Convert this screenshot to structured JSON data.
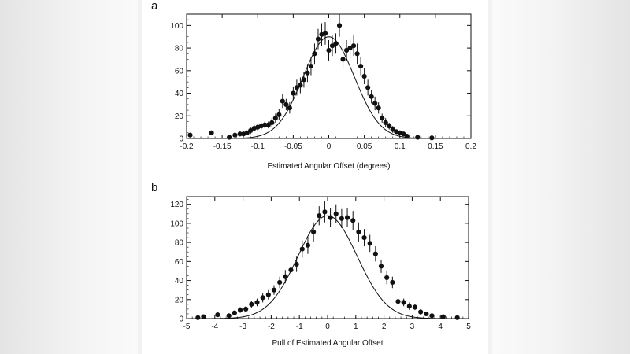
{
  "chart_data": [
    {
      "type": "scatter",
      "panel_label": "a",
      "xlabel": "Estimated Angular Offset (degrees)",
      "ylabel": "",
      "xlim": [
        -0.2,
        0.2
      ],
      "ylim": [
        0,
        110
      ],
      "x_ticks": [
        -0.2,
        -0.15,
        -0.1,
        -0.05,
        0,
        0.05,
        0.1,
        0.15,
        0.2
      ],
      "x_tick_labels": [
        "-0.2",
        "-0.15",
        "-0.1",
        "-0.05",
        "0",
        "0.05",
        "0.1",
        "0.15",
        "0.2"
      ],
      "y_ticks": [
        0,
        20,
        40,
        60,
        80,
        100
      ],
      "y_tick_labels": [
        "0",
        "20",
        "40",
        "60",
        "80",
        "100"
      ],
      "grid": false,
      "fit_curve": {
        "form": "gaussian",
        "amplitude": 90,
        "mean": 0,
        "sigma": 0.036
      },
      "series": [
        {
          "x": [
            -0.195,
            -0.165,
            -0.14,
            -0.132,
            -0.125,
            -0.12,
            -0.115,
            -0.11,
            -0.105,
            -0.1,
            -0.095,
            -0.09,
            -0.085,
            -0.08,
            -0.075,
            -0.07,
            -0.065,
            -0.06,
            -0.055,
            -0.05,
            -0.045,
            -0.04,
            -0.035,
            -0.03,
            -0.025,
            -0.02,
            -0.015,
            -0.01,
            -0.005,
            0.0,
            0.005,
            0.01,
            0.015,
            0.02,
            0.025,
            0.03,
            0.035,
            0.04,
            0.045,
            0.05,
            0.055,
            0.06,
            0.065,
            0.07,
            0.075,
            0.08,
            0.085,
            0.09,
            0.095,
            0.1,
            0.105,
            0.11,
            0.125,
            0.145
          ],
          "y": [
            3,
            5,
            1,
            3,
            4,
            4,
            5,
            7,
            9,
            10,
            11,
            12,
            12,
            14,
            18,
            21,
            33,
            30,
            27,
            40,
            45,
            47,
            52,
            58,
            64,
            75,
            88,
            92,
            93,
            78,
            82,
            84,
            100,
            70,
            78,
            80,
            82,
            75,
            64,
            55,
            45,
            37,
            31,
            27,
            18,
            14,
            11,
            8,
            6,
            5,
            4,
            2,
            1,
            0.5
          ],
          "err": [
            2,
            2,
            1,
            2,
            2,
            2,
            2,
            3,
            3,
            3,
            3,
            3,
            3,
            4,
            4,
            5,
            6,
            5,
            5,
            6,
            7,
            7,
            7,
            8,
            8,
            9,
            9,
            10,
            10,
            9,
            9,
            9,
            10,
            8,
            9,
            9,
            9,
            9,
            8,
            7,
            7,
            6,
            6,
            5,
            4,
            4,
            3,
            3,
            2,
            2,
            2,
            1,
            1,
            1
          ]
        }
      ]
    },
    {
      "type": "scatter",
      "panel_label": "b",
      "xlabel": "Pull of Estimated Angular Offset",
      "ylabel": "",
      "xlim": [
        -5,
        5
      ],
      "ylim": [
        0,
        128
      ],
      "x_ticks": [
        -5,
        -4,
        -3,
        -2,
        -1,
        0,
        1,
        2,
        3,
        4,
        5
      ],
      "x_tick_labels": [
        "-5",
        "-4",
        "-3",
        "-2",
        "-1",
        "0",
        "1",
        "2",
        "3",
        "4",
        "5"
      ],
      "y_ticks": [
        0,
        20,
        40,
        60,
        80,
        100,
        120
      ],
      "y_tick_labels": [
        "0",
        "20",
        "40",
        "60",
        "80",
        "100",
        "120"
      ],
      "grid": false,
      "fit_curve": {
        "form": "gaussian",
        "amplitude": 108,
        "mean": 0,
        "sigma": 1.05
      },
      "series": [
        {
          "x": [
            -4.6,
            -4.4,
            -3.9,
            -3.5,
            -3.3,
            -3.1,
            -2.9,
            -2.7,
            -2.5,
            -2.3,
            -2.1,
            -1.9,
            -1.7,
            -1.5,
            -1.3,
            -1.1,
            -0.9,
            -0.7,
            -0.5,
            -0.3,
            -0.1,
            0.1,
            0.3,
            0.5,
            0.7,
            0.9,
            1.1,
            1.3,
            1.5,
            1.7,
            1.9,
            2.1,
            2.3,
            2.5,
            2.7,
            2.9,
            3.1,
            3.3,
            3.5,
            3.7,
            4.1,
            4.6
          ],
          "y": [
            1,
            2,
            4,
            3,
            6,
            9,
            10,
            15,
            17,
            22,
            25,
            30,
            38,
            44,
            51,
            57,
            73,
            77,
            91,
            108,
            112,
            106,
            110,
            105,
            106,
            103,
            91,
            85,
            79,
            68,
            55,
            43,
            38,
            18,
            17,
            13,
            12,
            7,
            5,
            3,
            2,
            1
          ],
          "err": [
            1,
            1,
            2,
            2,
            2,
            3,
            3,
            4,
            4,
            5,
            5,
            5,
            6,
            7,
            7,
            8,
            9,
            9,
            10,
            10,
            11,
            10,
            10,
            10,
            10,
            10,
            10,
            9,
            9,
            8,
            7,
            7,
            6,
            4,
            4,
            4,
            3,
            3,
            2,
            2,
            1,
            1
          ]
        }
      ]
    }
  ]
}
